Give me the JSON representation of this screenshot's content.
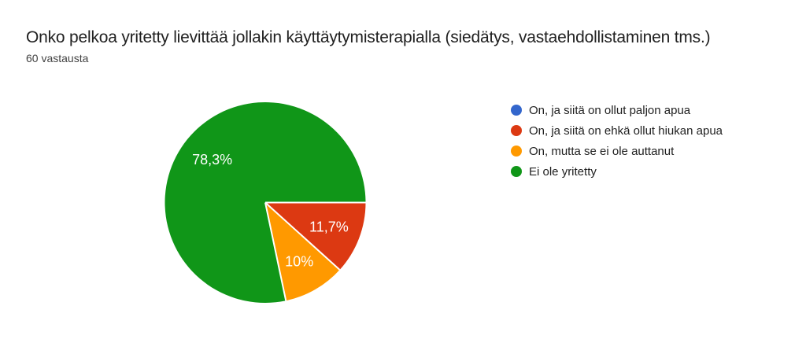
{
  "page": {
    "title": "Onko pelkoa yritetty lievittää jollakin käyttäytymisterapialla (siedätys, vastaehdollistaminen tms.)",
    "response_count": "60 vastausta"
  },
  "chart_data": {
    "type": "pie",
    "title": "Onko pelkoa yritetty lievittää jollakin käyttäytymisterapialla (siedätys, vastaehdollistaminen tms.)",
    "subtitle": "60 vastausta",
    "legend_position": "right",
    "start_angle_deg": 0,
    "direction": "clockwise",
    "categories": [
      "On, ja siitä on ollut paljon apua",
      "On, ja siitä on ehkä ollut hiukan apua",
      "On, mutta se ei ole auttanut",
      "Ei ole yritetty"
    ],
    "values_percent": [
      0,
      11.7,
      10,
      78.3
    ],
    "slices": [
      {
        "label": "On, ja siitä on ollut paljon apua",
        "percent": 0,
        "percent_label": "",
        "color": "#3366cc"
      },
      {
        "label": "On, ja siitä on ehkä ollut hiukan apua",
        "percent": 11.7,
        "percent_label": "11,7%",
        "color": "#dc3912"
      },
      {
        "label": "On, mutta se ei ole auttanut",
        "percent": 10,
        "percent_label": "10%",
        "color": "#ff9900"
      },
      {
        "label": "Ei ole yritetty",
        "percent": 78.3,
        "percent_label": "78,3%",
        "color": "#109618"
      }
    ],
    "slice_separator_color": "#ffffff",
    "label_color": "#ffffff"
  }
}
